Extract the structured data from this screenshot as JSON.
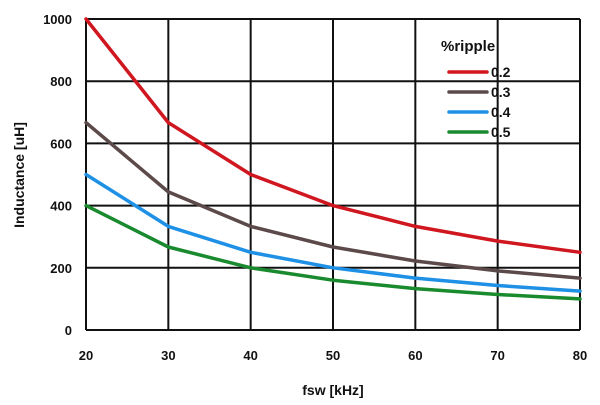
{
  "chart_data": {
    "type": "line",
    "xlabel": "fsw [kHz]",
    "ylabel": "Inductance [uH]",
    "xlim": [
      20,
      80
    ],
    "ylim": [
      0,
      1000
    ],
    "x_ticks": [
      "20",
      "30",
      "40",
      "50",
      "60",
      "70",
      "80"
    ],
    "y_ticks": [
      "0",
      "200",
      "400",
      "600",
      "800",
      "1000"
    ],
    "grid": true,
    "legend_title": "%ripple",
    "legend_position": "top-right",
    "x": [
      20,
      30,
      40,
      50,
      60,
      70,
      80
    ],
    "series": [
      {
        "name": "0.2",
        "color": "#d0161e",
        "values": [
          1000,
          667,
          500,
          400,
          333,
          286,
          250
        ]
      },
      {
        "name": "0.3",
        "color": "#5c4a4a",
        "values": [
          667,
          444,
          333,
          267,
          222,
          190,
          167
        ]
      },
      {
        "name": "0.4",
        "color": "#1e90e6",
        "values": [
          500,
          333,
          250,
          200,
          167,
          143,
          125
        ]
      },
      {
        "name": "0.5",
        "color": "#1a8a2e",
        "values": [
          400,
          267,
          200,
          160,
          133,
          114,
          100
        ]
      }
    ]
  }
}
